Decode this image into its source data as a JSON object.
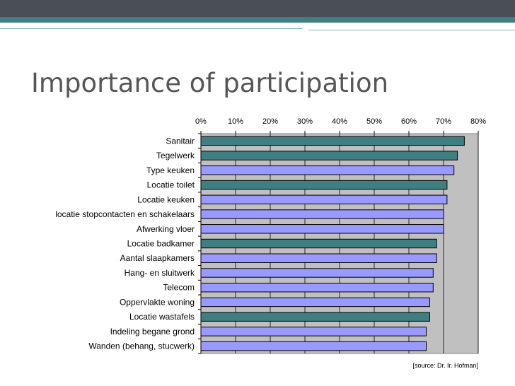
{
  "title": "Importance of participation",
  "source_note": "[source: Dr. Ir. Hofman]",
  "colors": {
    "dark_bar": "#3f7f81",
    "light_bar": "#9999ff",
    "plot_bg": "#c0c0c0",
    "title_text": "#565656",
    "header_dark": "#4a4f57",
    "header_teal": "#3f7f81"
  },
  "chart_data": {
    "type": "bar",
    "orientation": "horizontal",
    "x_ticks": [
      "0%",
      "10%",
      "20%",
      "30%",
      "40%",
      "50%",
      "60%",
      "70%",
      "80%"
    ],
    "xlim": [
      0,
      80
    ],
    "grid": true,
    "categories": [
      "Sanitair",
      "Tegelwerk",
      "Type keuken",
      "Locatie toilet",
      "Locatie keuken",
      "locatie stopcontacten en schakelaars",
      "Afwerking vloer",
      "Locatie badkamer",
      "Aantal slaapkamers",
      "Hang- en sluitwerk",
      "Telecom",
      "Oppervlakte woning",
      "Locatie wastafels",
      "Indeling begane grond",
      "Wanden (behang, stucwerk)"
    ],
    "values": [
      76,
      74,
      73,
      71,
      71,
      70,
      70,
      68,
      68,
      67,
      67,
      66,
      66,
      65,
      65
    ],
    "highlight": [
      true,
      true,
      false,
      true,
      false,
      false,
      false,
      true,
      false,
      false,
      false,
      false,
      true,
      false,
      false
    ]
  }
}
